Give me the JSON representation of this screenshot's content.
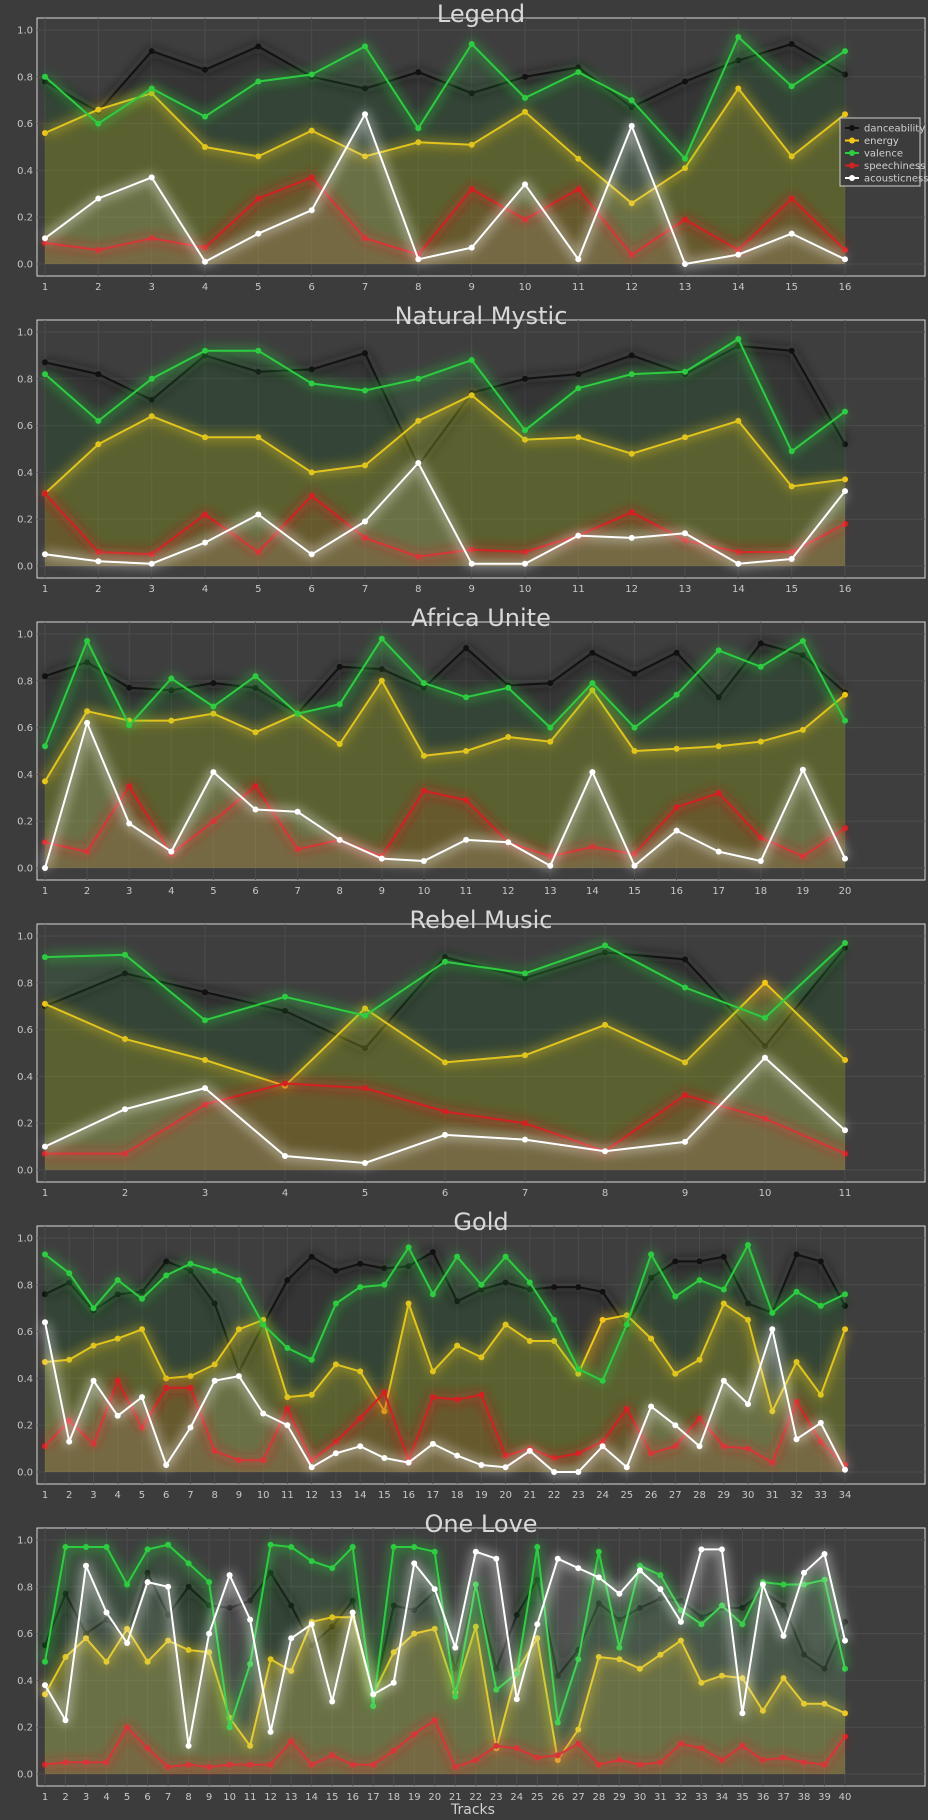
{
  "colors": {
    "background": "#3c3c3c",
    "axes_face": "#3e3e3e",
    "grid": "#4c4c4c",
    "series": {
      "danceability": "#111111",
      "energy": "#f5c518",
      "valence": "#2ecc40",
      "speechiness": "#d42020",
      "acousticness": "#ffffff"
    }
  },
  "legend": {
    "position": "right",
    "entries": [
      "danceability",
      "energy",
      "valence",
      "speechiness",
      "acousticness"
    ]
  },
  "xlabel": "Tracks",
  "chart_data": [
    {
      "type": "line",
      "title": "Legend",
      "ylim": [
        0,
        1.0
      ],
      "grid": true,
      "x": [
        1,
        2,
        3,
        4,
        5,
        6,
        7,
        8,
        9,
        10,
        11,
        12,
        13,
        14,
        15,
        16
      ],
      "series": [
        {
          "name": "danceability",
          "values": [
            0.78,
            0.65,
            0.91,
            0.83,
            0.93,
            0.8,
            0.75,
            0.82,
            0.73,
            0.8,
            0.84,
            0.67,
            0.78,
            0.87,
            0.94,
            0.81
          ]
        },
        {
          "name": "energy",
          "values": [
            0.56,
            0.66,
            0.73,
            0.5,
            0.46,
            0.57,
            0.46,
            0.52,
            0.51,
            0.65,
            0.45,
            0.26,
            0.41,
            0.75,
            0.46,
            0.64
          ]
        },
        {
          "name": "valence",
          "values": [
            0.8,
            0.6,
            0.75,
            0.63,
            0.78,
            0.81,
            0.93,
            0.58,
            0.94,
            0.71,
            0.82,
            0.7,
            0.45,
            0.97,
            0.76,
            0.91
          ]
        },
        {
          "name": "speechiness",
          "values": [
            0.09,
            0.06,
            0.11,
            0.07,
            0.28,
            0.37,
            0.11,
            0.04,
            0.32,
            0.19,
            0.32,
            0.04,
            0.19,
            0.06,
            0.28,
            0.06
          ]
        },
        {
          "name": "acousticness",
          "values": [
            0.11,
            0.28,
            0.37,
            0.01,
            0.13,
            0.23,
            0.64,
            0.02,
            0.07,
            0.34,
            0.02,
            0.59,
            0.0,
            0.04,
            0.13,
            0.02
          ]
        }
      ]
    },
    {
      "type": "line",
      "title": "Natural Mystic",
      "ylim": [
        0,
        1.0
      ],
      "grid": true,
      "x": [
        1,
        2,
        3,
        4,
        5,
        6,
        7,
        8,
        9,
        10,
        11,
        12,
        13,
        14,
        15,
        16
      ],
      "series": [
        {
          "name": "danceability",
          "values": [
            0.87,
            0.82,
            0.71,
            0.9,
            0.83,
            0.84,
            0.91,
            0.43,
            0.74,
            0.8,
            0.82,
            0.9,
            0.82,
            0.94,
            0.92,
            0.52
          ]
        },
        {
          "name": "energy",
          "values": [
            0.31,
            0.52,
            0.64,
            0.55,
            0.55,
            0.4,
            0.43,
            0.62,
            0.73,
            0.54,
            0.55,
            0.48,
            0.55,
            0.62,
            0.34,
            0.37
          ]
        },
        {
          "name": "valence",
          "values": [
            0.82,
            0.62,
            0.8,
            0.92,
            0.92,
            0.78,
            0.75,
            0.8,
            0.88,
            0.58,
            0.76,
            0.82,
            0.83,
            0.97,
            0.49,
            0.66
          ]
        },
        {
          "name": "speechiness",
          "values": [
            0.31,
            0.06,
            0.05,
            0.22,
            0.06,
            0.3,
            0.12,
            0.04,
            0.07,
            0.06,
            0.13,
            0.23,
            0.11,
            0.06,
            0.06,
            0.18
          ]
        },
        {
          "name": "acousticness",
          "values": [
            0.05,
            0.02,
            0.01,
            0.1,
            0.22,
            0.05,
            0.19,
            0.44,
            0.01,
            0.01,
            0.13,
            0.12,
            0.14,
            0.01,
            0.03,
            0.32
          ]
        }
      ]
    },
    {
      "type": "line",
      "title": "Africa Unite",
      "ylim": [
        0,
        1.0
      ],
      "grid": true,
      "x": [
        1,
        2,
        3,
        4,
        5,
        6,
        7,
        8,
        9,
        10,
        11,
        12,
        13,
        14,
        15,
        16,
        17,
        18,
        19,
        20
      ],
      "series": [
        {
          "name": "danceability",
          "values": [
            0.82,
            0.88,
            0.77,
            0.76,
            0.79,
            0.77,
            0.66,
            0.86,
            0.85,
            0.77,
            0.94,
            0.78,
            0.79,
            0.92,
            0.83,
            0.92,
            0.73,
            0.96,
            0.91,
            0.75
          ]
        },
        {
          "name": "energy",
          "values": [
            0.37,
            0.67,
            0.63,
            0.63,
            0.66,
            0.58,
            0.66,
            0.53,
            0.8,
            0.48,
            0.5,
            0.56,
            0.54,
            0.76,
            0.5,
            0.51,
            0.52,
            0.54,
            0.59,
            0.74
          ]
        },
        {
          "name": "valence",
          "values": [
            0.52,
            0.97,
            0.61,
            0.81,
            0.69,
            0.82,
            0.66,
            0.7,
            0.98,
            0.79,
            0.73,
            0.77,
            0.6,
            0.79,
            0.6,
            0.74,
            0.93,
            0.86,
            0.97,
            0.63
          ]
        },
        {
          "name": "speechiness",
          "values": [
            0.11,
            0.07,
            0.35,
            0.06,
            0.2,
            0.35,
            0.08,
            0.12,
            0.05,
            0.33,
            0.29,
            0.11,
            0.05,
            0.09,
            0.06,
            0.26,
            0.32,
            0.13,
            0.05,
            0.17
          ]
        },
        {
          "name": "acousticness",
          "values": [
            0.0,
            0.62,
            0.19,
            0.07,
            0.41,
            0.25,
            0.24,
            0.12,
            0.04,
            0.03,
            0.12,
            0.11,
            0.01,
            0.41,
            0.01,
            0.16,
            0.07,
            0.03,
            0.42,
            0.04
          ]
        }
      ]
    },
    {
      "type": "line",
      "title": "Rebel Music",
      "ylim": [
        0,
        1.0
      ],
      "grid": true,
      "x": [
        1,
        2,
        3,
        4,
        5,
        6,
        7,
        8,
        9,
        10,
        11
      ],
      "series": [
        {
          "name": "danceability",
          "values": [
            0.7,
            0.84,
            0.76,
            0.68,
            0.52,
            0.91,
            0.82,
            0.93,
            0.9,
            0.53,
            0.95
          ]
        },
        {
          "name": "energy",
          "values": [
            0.71,
            0.56,
            0.47,
            0.36,
            0.69,
            0.46,
            0.49,
            0.62,
            0.46,
            0.8,
            0.47
          ]
        },
        {
          "name": "valence",
          "values": [
            0.91,
            0.92,
            0.64,
            0.74,
            0.66,
            0.89,
            0.84,
            0.96,
            0.78,
            0.65,
            0.97
          ]
        },
        {
          "name": "speechiness",
          "values": [
            0.07,
            0.07,
            0.28,
            0.37,
            0.35,
            0.25,
            0.2,
            0.08,
            0.32,
            0.22,
            0.07
          ]
        },
        {
          "name": "acousticness",
          "values": [
            0.1,
            0.26,
            0.35,
            0.06,
            0.03,
            0.15,
            0.13,
            0.08,
            0.12,
            0.48,
            0.17
          ]
        }
      ]
    },
    {
      "type": "line",
      "title": "Gold",
      "ylim": [
        0,
        1.0
      ],
      "grid": true,
      "x": [
        1,
        2,
        3,
        4,
        5,
        6,
        7,
        8,
        9,
        10,
        11,
        12,
        13,
        14,
        15,
        16,
        17,
        18,
        19,
        20,
        21,
        22,
        23,
        24,
        25,
        26,
        27,
        28,
        29,
        30,
        31,
        32,
        33,
        34
      ],
      "series": [
        {
          "name": "danceability",
          "values": [
            0.76,
            0.81,
            0.69,
            0.76,
            0.77,
            0.9,
            0.86,
            0.72,
            0.43,
            0.63,
            0.82,
            0.92,
            0.86,
            0.89,
            0.87,
            0.88,
            0.94,
            0.73,
            0.78,
            0.81,
            0.78,
            0.79,
            0.79,
            0.77,
            0.62,
            0.83,
            0.9,
            0.9,
            0.92,
            0.72,
            0.68,
            0.93,
            0.9,
            0.71
          ]
        },
        {
          "name": "energy",
          "values": [
            0.47,
            0.48,
            0.54,
            0.57,
            0.61,
            0.4,
            0.41,
            0.46,
            0.61,
            0.65,
            0.32,
            0.33,
            0.46,
            0.43,
            0.26,
            0.72,
            0.43,
            0.54,
            0.49,
            0.63,
            0.56,
            0.56,
            0.42,
            0.65,
            0.67,
            0.57,
            0.42,
            0.48,
            0.72,
            0.65,
            0.26,
            0.47,
            0.33,
            0.61
          ]
        },
        {
          "name": "valence",
          "values": [
            0.93,
            0.85,
            0.7,
            0.82,
            0.74,
            0.84,
            0.89,
            0.86,
            0.82,
            0.63,
            0.53,
            0.48,
            0.72,
            0.79,
            0.8,
            0.96,
            0.76,
            0.92,
            0.8,
            0.92,
            0.81,
            0.65,
            0.44,
            0.39,
            0.63,
            0.93,
            0.75,
            0.82,
            0.78,
            0.97,
            0.68,
            0.77,
            0.71,
            0.76
          ]
        },
        {
          "name": "speechiness",
          "values": [
            0.11,
            0.22,
            0.12,
            0.39,
            0.19,
            0.36,
            0.36,
            0.09,
            0.05,
            0.05,
            0.27,
            0.05,
            0.13,
            0.23,
            0.34,
            0.05,
            0.32,
            0.31,
            0.33,
            0.07,
            0.1,
            0.06,
            0.08,
            0.13,
            0.27,
            0.08,
            0.11,
            0.23,
            0.11,
            0.1,
            0.04,
            0.3,
            0.13,
            0.03
          ]
        },
        {
          "name": "acousticness",
          "values": [
            0.64,
            0.13,
            0.39,
            0.24,
            0.32,
            0.03,
            0.19,
            0.39,
            0.41,
            0.25,
            0.2,
            0.02,
            0.08,
            0.11,
            0.06,
            0.04,
            0.12,
            0.07,
            0.03,
            0.02,
            0.09,
            0.0,
            0.0,
            0.11,
            0.02,
            0.28,
            0.2,
            0.11,
            0.39,
            0.29,
            0.61,
            0.14,
            0.21,
            0.01
          ]
        }
      ]
    },
    {
      "type": "line",
      "title": "One Love",
      "ylim": [
        0,
        1.0
      ],
      "grid": true,
      "x": [
        1,
        2,
        3,
        4,
        5,
        6,
        7,
        8,
        9,
        10,
        11,
        12,
        13,
        14,
        15,
        16,
        17,
        18,
        19,
        20,
        21,
        22,
        23,
        24,
        25,
        26,
        27,
        28,
        29,
        30,
        31,
        32,
        33,
        34,
        35,
        36,
        37,
        38,
        39,
        40
      ],
      "series": [
        {
          "name": "danceability",
          "values": [
            0.55,
            0.77,
            0.6,
            0.66,
            0.59,
            0.86,
            0.68,
            0.8,
            0.72,
            0.71,
            0.74,
            0.86,
            0.72,
            0.55,
            0.63,
            0.74,
            0.32,
            0.72,
            0.7,
            0.78,
            0.45,
            0.79,
            0.45,
            0.68,
            0.83,
            0.42,
            0.53,
            0.73,
            0.66,
            0.71,
            0.75,
            0.74,
            0.67,
            0.71,
            0.71,
            0.78,
            0.72,
            0.51,
            0.45,
            0.65
          ]
        },
        {
          "name": "energy",
          "values": [
            0.34,
            0.5,
            0.58,
            0.48,
            0.62,
            0.48,
            0.57,
            0.53,
            0.52,
            0.24,
            0.12,
            0.49,
            0.44,
            0.65,
            0.67,
            0.67,
            0.34,
            0.52,
            0.6,
            0.62,
            0.35,
            0.63,
            0.11,
            0.44,
            0.58,
            0.06,
            0.19,
            0.5,
            0.49,
            0.45,
            0.51,
            0.57,
            0.39,
            0.42,
            0.41,
            0.27,
            0.41,
            0.3,
            0.3,
            0.26
          ]
        },
        {
          "name": "valence",
          "values": [
            0.48,
            0.97,
            0.97,
            0.97,
            0.81,
            0.96,
            0.98,
            0.9,
            0.82,
            0.2,
            0.47,
            0.98,
            0.97,
            0.91,
            0.88,
            0.97,
            0.29,
            0.97,
            0.97,
            0.95,
            0.33,
            0.81,
            0.36,
            0.43,
            0.97,
            0.22,
            0.49,
            0.95,
            0.54,
            0.89,
            0.85,
            0.7,
            0.64,
            0.72,
            0.64,
            0.82,
            0.81,
            0.81,
            0.83,
            0.45
          ]
        },
        {
          "name": "speechiness",
          "values": [
            0.04,
            0.05,
            0.05,
            0.05,
            0.2,
            0.11,
            0.03,
            0.04,
            0.03,
            0.04,
            0.04,
            0.04,
            0.14,
            0.04,
            0.08,
            0.04,
            0.04,
            0.1,
            0.17,
            0.23,
            0.03,
            0.06,
            0.12,
            0.11,
            0.07,
            0.08,
            0.13,
            0.04,
            0.06,
            0.04,
            0.05,
            0.13,
            0.11,
            0.06,
            0.12,
            0.06,
            0.07,
            0.05,
            0.04,
            0.16
          ]
        },
        {
          "name": "acousticness",
          "values": [
            0.38,
            0.23,
            0.89,
            0.69,
            0.56,
            0.82,
            0.8,
            0.12,
            0.6,
            0.85,
            0.66,
            0.18,
            0.58,
            0.64,
            0.31,
            0.69,
            0.34,
            0.39,
            0.9,
            0.79,
            0.54,
            0.95,
            0.92,
            0.32,
            0.64,
            0.92,
            0.88,
            0.84,
            0.77,
            0.87,
            0.79,
            0.65,
            0.96,
            0.96,
            0.26,
            0.81,
            0.59,
            0.86,
            0.94,
            0.57
          ]
        }
      ]
    }
  ]
}
